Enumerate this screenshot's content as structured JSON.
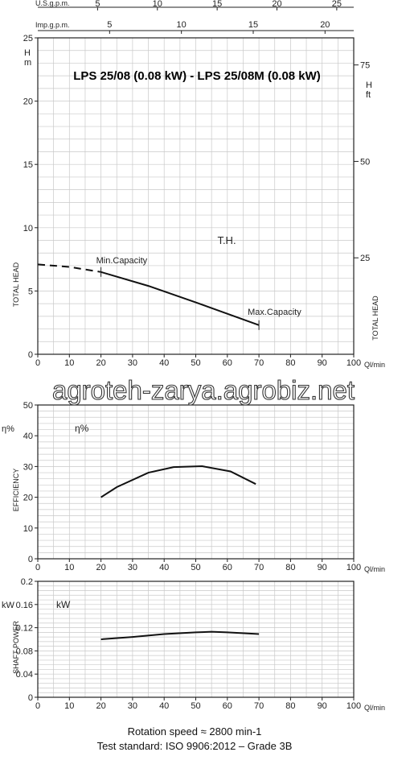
{
  "top_axes": {
    "usgpm_label": "U.S.g.p.m.",
    "usgpm_ticks": [
      "5",
      "10",
      "15",
      "20",
      "25"
    ],
    "impgpm_label": "Imp.g.p.m.",
    "impgpm_ticks": [
      "5",
      "10",
      "15",
      "20"
    ]
  },
  "watermark": "agroteh-zarya.agrobiz.net",
  "footer": {
    "line1": "Rotation speed ≈ 2800 min-1",
    "line2": "Test standard: ISO 9906:2012 – Grade 3B"
  },
  "chart_data": [
    {
      "type": "line",
      "title": "LPS 25/08 (0.08 kW) - LPS 25/08M (0.08 kW)",
      "curve_label": "T.H.",
      "ylabel": "TOTAL HEAD",
      "ylabel_right": "TOTAL HEAD",
      "y_unit_left": "H\nm",
      "y_unit_right": "H\nft",
      "x_unit": "Ql/min",
      "xlim": [
        0,
        100
      ],
      "ylim": [
        0,
        25
      ],
      "x_ticks": [
        0,
        10,
        20,
        30,
        40,
        50,
        60,
        70,
        80,
        90,
        100
      ],
      "y_ticks": [
        0,
        5,
        10,
        15,
        20,
        25
      ],
      "y_ticks_right": [
        25,
        50,
        75
      ],
      "grid": true,
      "series": [
        {
          "x": [
            0,
            10,
            20,
            35,
            50,
            60,
            70
          ],
          "y": [
            7.1,
            6.9,
            6.5,
            5.4,
            4.1,
            3.2,
            2.3
          ]
        }
      ],
      "annotations": [
        {
          "text": "Min.Capacity",
          "x": 20,
          "y": 6.5
        },
        {
          "text": "Max.Capacity",
          "x": 70,
          "y": 2.3
        }
      ]
    },
    {
      "type": "line",
      "curve_label": "η%",
      "ylabel": "EFFICIENCY",
      "y_unit_left": "η%",
      "x_unit": "Ql/min",
      "xlim": [
        0,
        100
      ],
      "ylim": [
        0,
        50
      ],
      "x_ticks": [
        0,
        10,
        20,
        30,
        40,
        50,
        60,
        70,
        80,
        90,
        100
      ],
      "y_ticks": [
        0,
        10,
        20,
        30,
        40,
        50
      ],
      "grid": true,
      "series": [
        {
          "x": [
            20,
            25,
            35,
            43,
            52,
            61,
            69
          ],
          "y": [
            20,
            23.3,
            28,
            29.8,
            30.1,
            28.4,
            24.3
          ]
        }
      ]
    },
    {
      "type": "line",
      "curve_label": "kW",
      "ylabel": "SHAFT POWER",
      "y_unit_left": "kW",
      "x_unit": "Ql/min",
      "xlim": [
        0,
        100
      ],
      "ylim": [
        0,
        0.2
      ],
      "x_ticks": [
        0,
        10,
        20,
        30,
        40,
        50,
        60,
        70,
        80,
        90,
        100
      ],
      "y_ticks": [
        0,
        0.04,
        0.08,
        0.12,
        0.16,
        0.2
      ],
      "grid": true,
      "series": [
        {
          "x": [
            20,
            30,
            40,
            50,
            55,
            60,
            70
          ],
          "y": [
            0.1,
            0.104,
            0.109,
            0.112,
            0.113,
            0.112,
            0.109
          ]
        }
      ]
    }
  ]
}
